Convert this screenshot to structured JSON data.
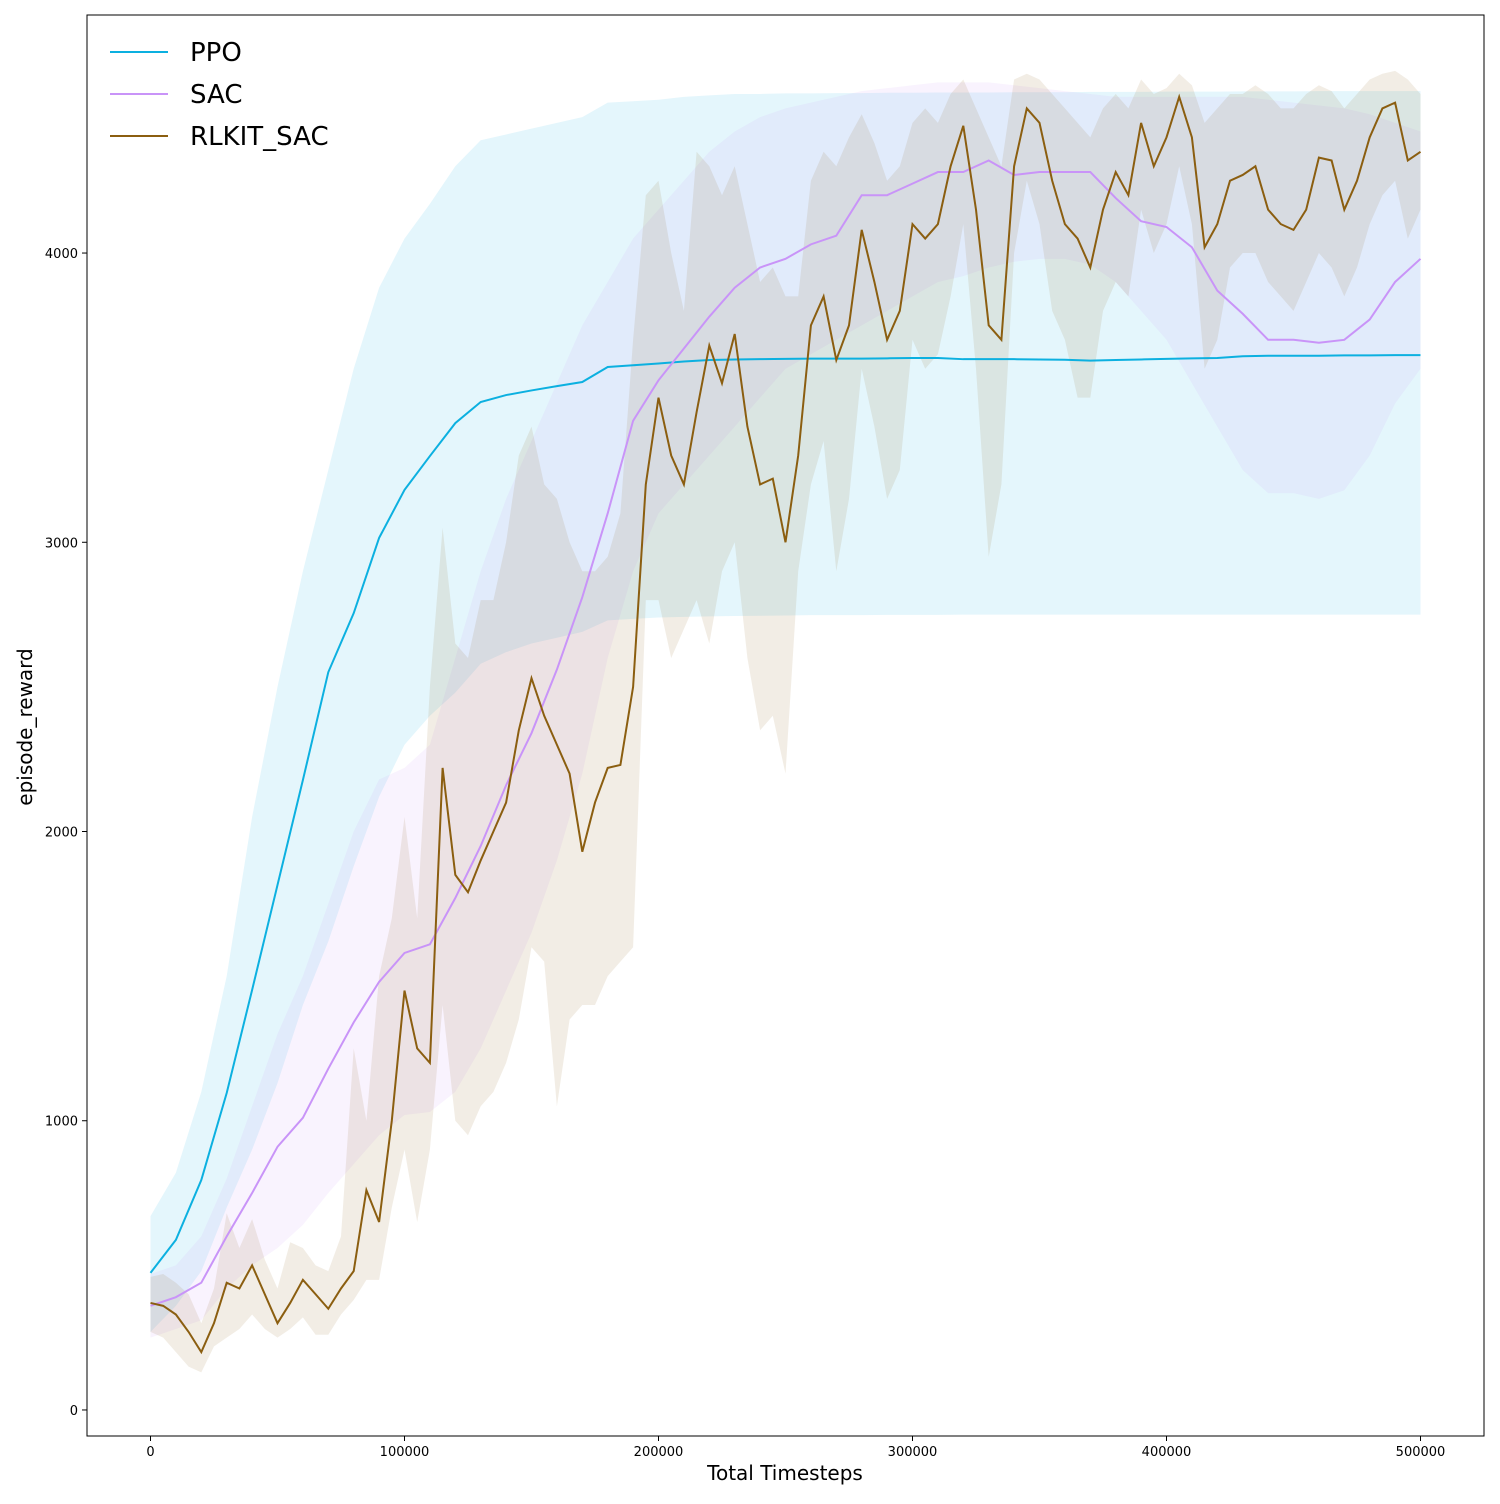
{
  "chart_data": {
    "type": "line",
    "x_label": "Total Timesteps",
    "y_label": "episode_reward",
    "xlim": [
      -25000,
      525000
    ],
    "ylim": [
      -90,
      4823
    ],
    "xticks": [
      0,
      100000,
      200000,
      300000,
      400000,
      500000
    ],
    "yticks": [
      0,
      1000,
      2000,
      3000,
      4000
    ],
    "legend": "upper left",
    "series": [
      {
        "name": "PPO",
        "color": "#0cb0e0",
        "x": [
          0,
          10000,
          20000,
          30000,
          40000,
          50000,
          60000,
          70000,
          80000,
          90000,
          100000,
          110000,
          120000,
          130000,
          140000,
          150000,
          160000,
          170000,
          180000,
          190000,
          200000,
          210000,
          220000,
          230000,
          240000,
          250000,
          260000,
          270000,
          280000,
          290000,
          300000,
          310000,
          320000,
          330000,
          340000,
          350000,
          360000,
          370000,
          380000,
          390000,
          400000,
          410000,
          420000,
          430000,
          440000,
          450000,
          460000,
          470000,
          480000,
          490000,
          500000
        ],
        "values": [
          474,
          588,
          795,
          1096,
          1452,
          1815,
          2178,
          2551,
          2755,
          3015,
          3181,
          3298,
          3412,
          3485,
          3509,
          3525,
          3540,
          3554,
          3606,
          3612,
          3618,
          3625,
          3630,
          3632,
          3633,
          3634,
          3635,
          3635,
          3635,
          3636,
          3637,
          3637,
          3633,
          3633,
          3633,
          3632,
          3631,
          3628,
          3630,
          3632,
          3634,
          3636,
          3637,
          3643,
          3645,
          3645,
          3645,
          3646,
          3646,
          3647,
          3647
        ],
        "upper": [
          670,
          820,
          1100,
          1500,
          2050,
          2500,
          2900,
          3250,
          3600,
          3880,
          4050,
          4170,
          4300,
          4390,
          4410,
          4430,
          4450,
          4470,
          4520,
          4525,
          4530,
          4540,
          4545,
          4550,
          4550,
          4552,
          4552,
          4553,
          4553,
          4554,
          4554,
          4555,
          4555,
          4555,
          4556,
          4556,
          4556,
          4557,
          4557,
          4557,
          4558,
          4558,
          4558,
          4559,
          4559,
          4559,
          4560,
          4560,
          4560,
          4560,
          4560
        ],
        "lower": [
          270,
          360,
          480,
          700,
          900,
          1130,
          1400,
          1620,
          1880,
          2120,
          2300,
          2400,
          2480,
          2580,
          2620,
          2650,
          2670,
          2690,
          2730,
          2735,
          2740,
          2742,
          2744,
          2745,
          2746,
          2747,
          2748,
          2748,
          2748,
          2749,
          2749,
          2749,
          2750,
          2750,
          2750,
          2750,
          2750,
          2750,
          2750,
          2750,
          2750,
          2750,
          2750,
          2750,
          2750,
          2750,
          2750,
          2750,
          2750,
          2750,
          2750
        ]
      },
      {
        "name": "SAC",
        "color": "#c994f8",
        "x": [
          0,
          10000,
          20000,
          30000,
          40000,
          50000,
          60000,
          70000,
          80000,
          90000,
          100000,
          110000,
          120000,
          130000,
          140000,
          150000,
          160000,
          170000,
          180000,
          190000,
          200000,
          210000,
          220000,
          230000,
          240000,
          250000,
          260000,
          270000,
          280000,
          290000,
          300000,
          310000,
          320000,
          330000,
          340000,
          350000,
          360000,
          370000,
          380000,
          390000,
          400000,
          410000,
          420000,
          430000,
          440000,
          450000,
          460000,
          470000,
          480000,
          490000,
          500000
        ],
        "values": [
          360,
          390,
          440,
          600,
          750,
          910,
          1010,
          1180,
          1340,
          1480,
          1580,
          1610,
          1770,
          1950,
          2160,
          2340,
          2560,
          2810,
          3100,
          3420,
          3560,
          3670,
          3780,
          3880,
          3950,
          3980,
          4030,
          4060,
          4200,
          4200,
          4240,
          4280,
          4280,
          4320,
          4270,
          4280,
          4280,
          4280,
          4190,
          4110,
          4090,
          4020,
          3870,
          3790,
          3700,
          3700,
          3690,
          3700,
          3770,
          3900,
          3980
        ],
        "upper": [
          470,
          500,
          600,
          800,
          1050,
          1300,
          1500,
          1750,
          2000,
          2180,
          2220,
          2300,
          2600,
          2900,
          3150,
          3350,
          3550,
          3750,
          3900,
          4050,
          4150,
          4250,
          4350,
          4420,
          4470,
          4500,
          4520,
          4540,
          4560,
          4570,
          4580,
          4590,
          4590,
          4590,
          4580,
          4570,
          4560,
          4550,
          4540,
          4540,
          4540,
          4540,
          4540,
          4540,
          4530,
          4520,
          4510,
          4500,
          4480,
          4450,
          4420
        ],
        "lower": [
          250,
          280,
          310,
          420,
          500,
          560,
          640,
          750,
          850,
          950,
          1020,
          1030,
          1100,
          1250,
          1450,
          1650,
          1900,
          2200,
          2600,
          2900,
          3100,
          3200,
          3300,
          3400,
          3500,
          3600,
          3650,
          3700,
          3750,
          3800,
          3850,
          3900,
          3920,
          3950,
          3970,
          3980,
          3980,
          3960,
          3900,
          3800,
          3700,
          3550,
          3400,
          3250,
          3170,
          3170,
          3150,
          3180,
          3300,
          3480,
          3600
        ]
      },
      {
        "name": "RLKIT_SAC",
        "color": "#8b5e10",
        "x": [
          0,
          5000,
          10000,
          15000,
          20000,
          25000,
          30000,
          35000,
          40000,
          45000,
          50000,
          55000,
          60000,
          65000,
          70000,
          75000,
          80000,
          85000,
          90000,
          95000,
          100000,
          105000,
          110000,
          115000,
          120000,
          125000,
          130000,
          135000,
          140000,
          145000,
          150000,
          155000,
          160000,
          165000,
          170000,
          175000,
          180000,
          185000,
          190000,
          195000,
          200000,
          205000,
          210000,
          215000,
          220000,
          225000,
          230000,
          235000,
          240000,
          245000,
          250000,
          255000,
          260000,
          265000,
          270000,
          275000,
          280000,
          285000,
          290000,
          295000,
          300000,
          305000,
          310000,
          315000,
          320000,
          325000,
          330000,
          335000,
          340000,
          345000,
          350000,
          355000,
          360000,
          365000,
          370000,
          375000,
          380000,
          385000,
          390000,
          395000,
          400000,
          405000,
          410000,
          415000,
          420000,
          425000,
          430000,
          435000,
          440000,
          445000,
          450000,
          455000,
          460000,
          465000,
          470000,
          475000,
          480000,
          485000,
          490000,
          495000,
          500000
        ],
        "values": [
          370,
          360,
          330,
          270,
          200,
          300,
          440,
          420,
          500,
          400,
          300,
          370,
          450,
          400,
          350,
          420,
          480,
          760,
          650,
          1000,
          1450,
          1250,
          1200,
          2220,
          1850,
          1790,
          1900,
          2000,
          2100,
          2350,
          2530,
          2400,
          2300,
          2200,
          1930,
          2100,
          2220,
          2230,
          2500,
          3200,
          3500,
          3300,
          3200,
          3450,
          3680,
          3550,
          3720,
          3400,
          3200,
          3220,
          3000,
          3300,
          3750,
          3850,
          3630,
          3750,
          4080,
          3900,
          3700,
          3800,
          4100,
          4050,
          4100,
          4300,
          4440,
          4150,
          3750,
          3700,
          4300,
          4500,
          4450,
          4250,
          4100,
          4050,
          3950,
          4150,
          4280,
          4200,
          4450,
          4300,
          4400,
          4540,
          4400,
          4020,
          4100,
          4250,
          4270,
          4300,
          4150,
          4100,
          4080,
          4150,
          4330,
          4320,
          4150,
          4250,
          4400,
          4500,
          4520,
          4320,
          4350
        ],
        "upper": [
          460,
          470,
          440,
          400,
          300,
          420,
          680,
          560,
          660,
          520,
          420,
          580,
          560,
          500,
          480,
          600,
          1250,
          1000,
          1500,
          1700,
          2050,
          1700,
          2500,
          3050,
          2650,
          2600,
          2800,
          2800,
          3000,
          3300,
          3400,
          3200,
          3150,
          3000,
          2900,
          2900,
          2950,
          3100,
          3700,
          4200,
          4250,
          4000,
          3800,
          4350,
          4300,
          4200,
          4300,
          4100,
          3900,
          3950,
          3850,
          3850,
          4250,
          4350,
          4300,
          4400,
          4480,
          4380,
          4250,
          4300,
          4450,
          4500,
          4450,
          4550,
          4600,
          4500,
          4400,
          4300,
          4600,
          4620,
          4600,
          4550,
          4500,
          4450,
          4400,
          4500,
          4550,
          4500,
          4600,
          4550,
          4570,
          4620,
          4580,
          4450,
          4500,
          4550,
          4550,
          4580,
          4550,
          4500,
          4500,
          4550,
          4580,
          4560,
          4500,
          4550,
          4600,
          4620,
          4630,
          4600,
          4550
        ],
        "lower": [
          270,
          250,
          200,
          150,
          130,
          220,
          250,
          280,
          330,
          280,
          250,
          280,
          320,
          260,
          260,
          330,
          380,
          450,
          450,
          700,
          900,
          650,
          900,
          1400,
          1000,
          950,
          1050,
          1100,
          1200,
          1350,
          1600,
          1550,
          1050,
          1350,
          1400,
          1400,
          1500,
          1550,
          1600,
          2800,
          2800,
          2600,
          2700,
          2800,
          2650,
          2900,
          3000,
          2600,
          2350,
          2400,
          2200,
          2900,
          3200,
          3350,
          2900,
          3150,
          3600,
          3400,
          3150,
          3250,
          3700,
          3600,
          3650,
          3850,
          4100,
          3600,
          2950,
          3200,
          4000,
          4250,
          4100,
          3800,
          3700,
          3500,
          3500,
          3800,
          3900,
          3850,
          4150,
          4000,
          4100,
          4300,
          4100,
          3600,
          3700,
          3950,
          4000,
          4000,
          3900,
          3850,
          3800,
          3900,
          4000,
          3950,
          3850,
          3950,
          4100,
          4200,
          4250,
          4050,
          4150
        ]
      }
    ]
  }
}
